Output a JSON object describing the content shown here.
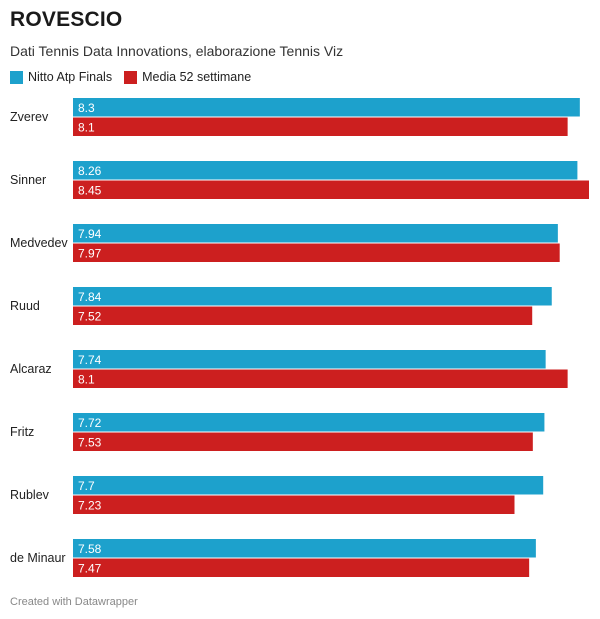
{
  "title": "ROVESCIO",
  "subtitle": "Dati Tennis Data Innovations, elaborazione Tennis Viz",
  "footer": "Created with Datawrapper",
  "colors": {
    "series1": "#1da1cc",
    "series2": "#cc1f1f"
  },
  "chart_data": {
    "type": "bar",
    "orientation": "horizontal",
    "categories": [
      "Zverev",
      "Sinner",
      "Medvedev",
      "Ruud",
      "Alcaraz",
      "Fritz",
      "Rublev",
      "de Minaur"
    ],
    "series": [
      {
        "name": "Nitto Atp Finals",
        "values": [
          8.3,
          8.26,
          7.94,
          7.84,
          7.74,
          7.72,
          7.7,
          7.58
        ]
      },
      {
        "name": "Media 52 settimane",
        "values": [
          8.1,
          8.45,
          7.97,
          7.52,
          8.1,
          7.53,
          7.23,
          7.47
        ]
      }
    ],
    "xlim": [
      0,
      8.45
    ],
    "legend_position": "top-left",
    "grid": false
  }
}
